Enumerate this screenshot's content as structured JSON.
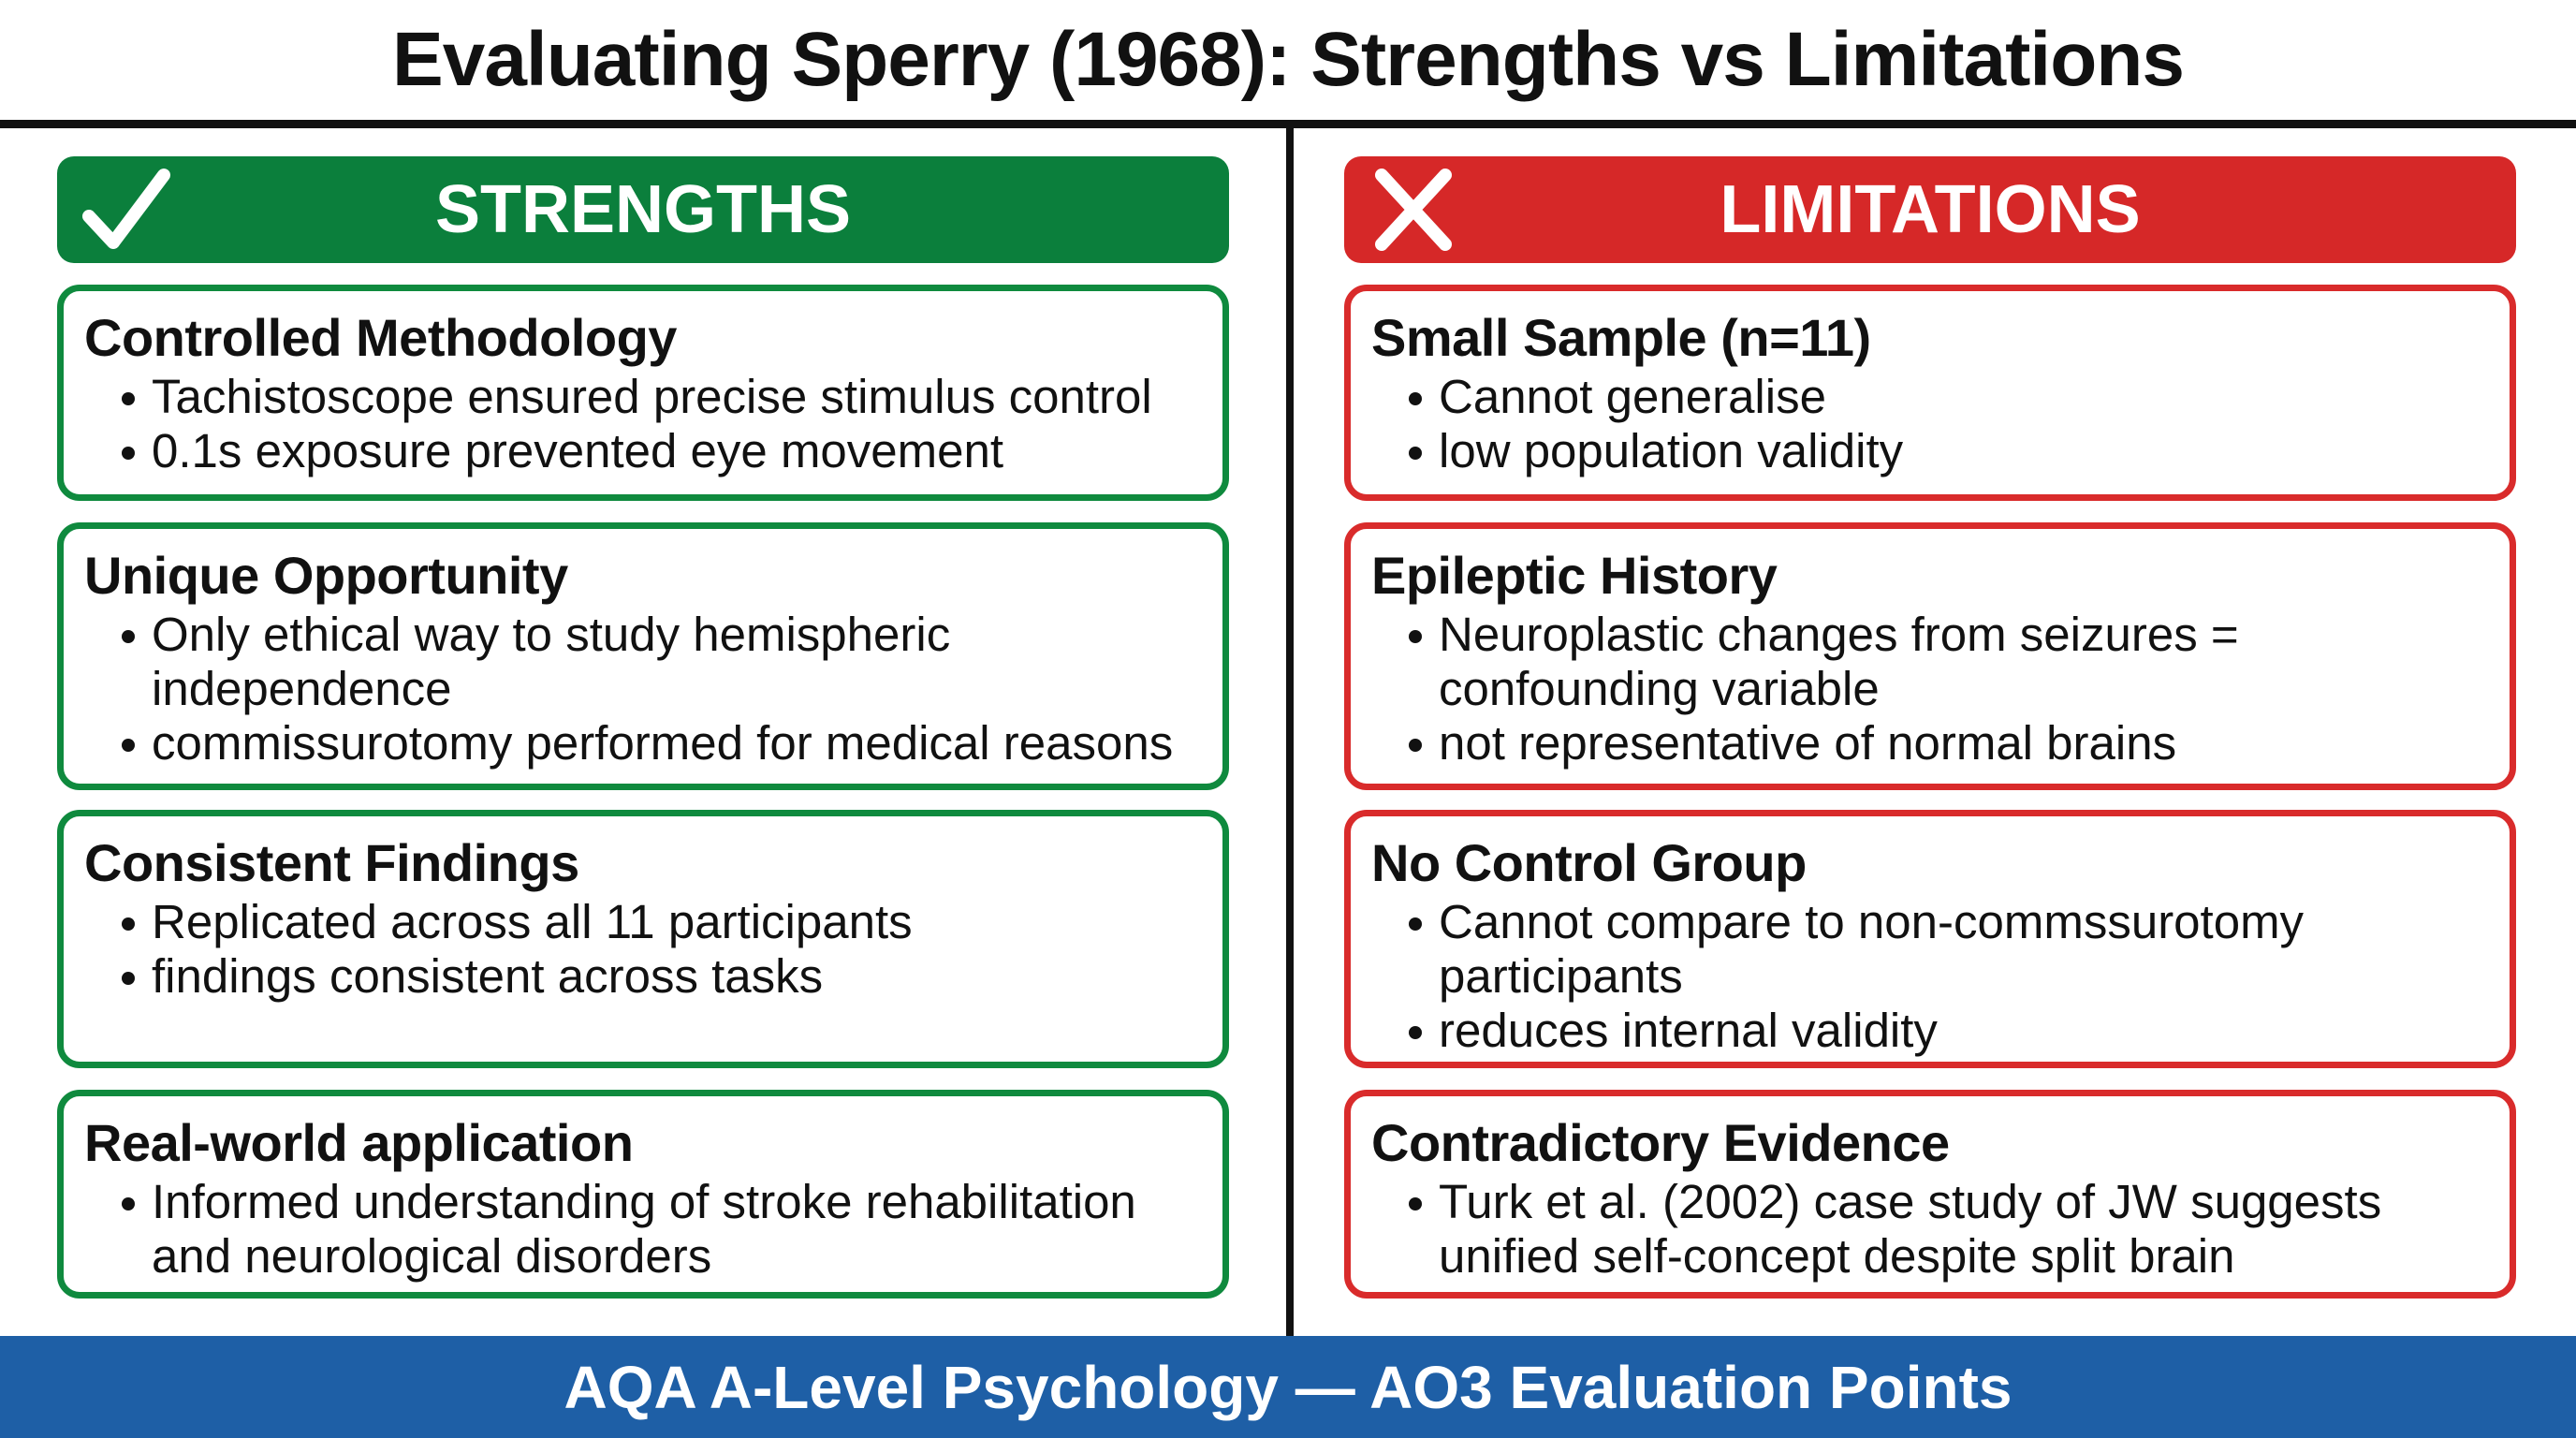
{
  "title": "Evaluating Sperry (1968): Strengths vs Limitations",
  "colors": {
    "strengths": "#0b7f3c",
    "limitations": "#d62828",
    "footer": "#1e5fa6"
  },
  "strengths": {
    "label": "STRENGTHS",
    "icon": "checkmark-icon",
    "cards": [
      {
        "heading": "Controlled Methodology",
        "bullets": [
          "Tachistoscope ensured precise stimulus control",
          "0.1s exposure prevented eye movement"
        ]
      },
      {
        "heading": "Unique Opportunity",
        "bullets": [
          "Only ethical way to study hemispheric independence",
          "commissurotomy performed for medical reasons"
        ]
      },
      {
        "heading": "Consistent Findings",
        "bullets": [
          "Replicated across all 11 participants",
          "findings consistent across tasks"
        ]
      },
      {
        "heading": "Real-world application",
        "bullets": [
          "Informed understanding of stroke rehabilitation and neurological disorders"
        ]
      }
    ]
  },
  "limitations": {
    "label": "LIMITATIONS",
    "icon": "x-icon",
    "cards": [
      {
        "heading": "Small Sample (n=11)",
        "bullets": [
          "Cannot generalise",
          "low population validity"
        ]
      },
      {
        "heading": "Epileptic History",
        "bullets": [
          "Neuroplastic changes from seizures = confounding variable",
          "not representative of normal brains"
        ]
      },
      {
        "heading": "No Control Group",
        "bullets": [
          "Cannot compare to non-commssurotomy participants",
          "reduces internal validity"
        ]
      },
      {
        "heading": "Contradictory Evidence",
        "bullets": [
          "Turk et al. (2002) case study of JW suggests unified self-concept despite split brain"
        ]
      }
    ]
  },
  "footer": "AQA A-Level Psychology — AO3 Evaluation Points"
}
